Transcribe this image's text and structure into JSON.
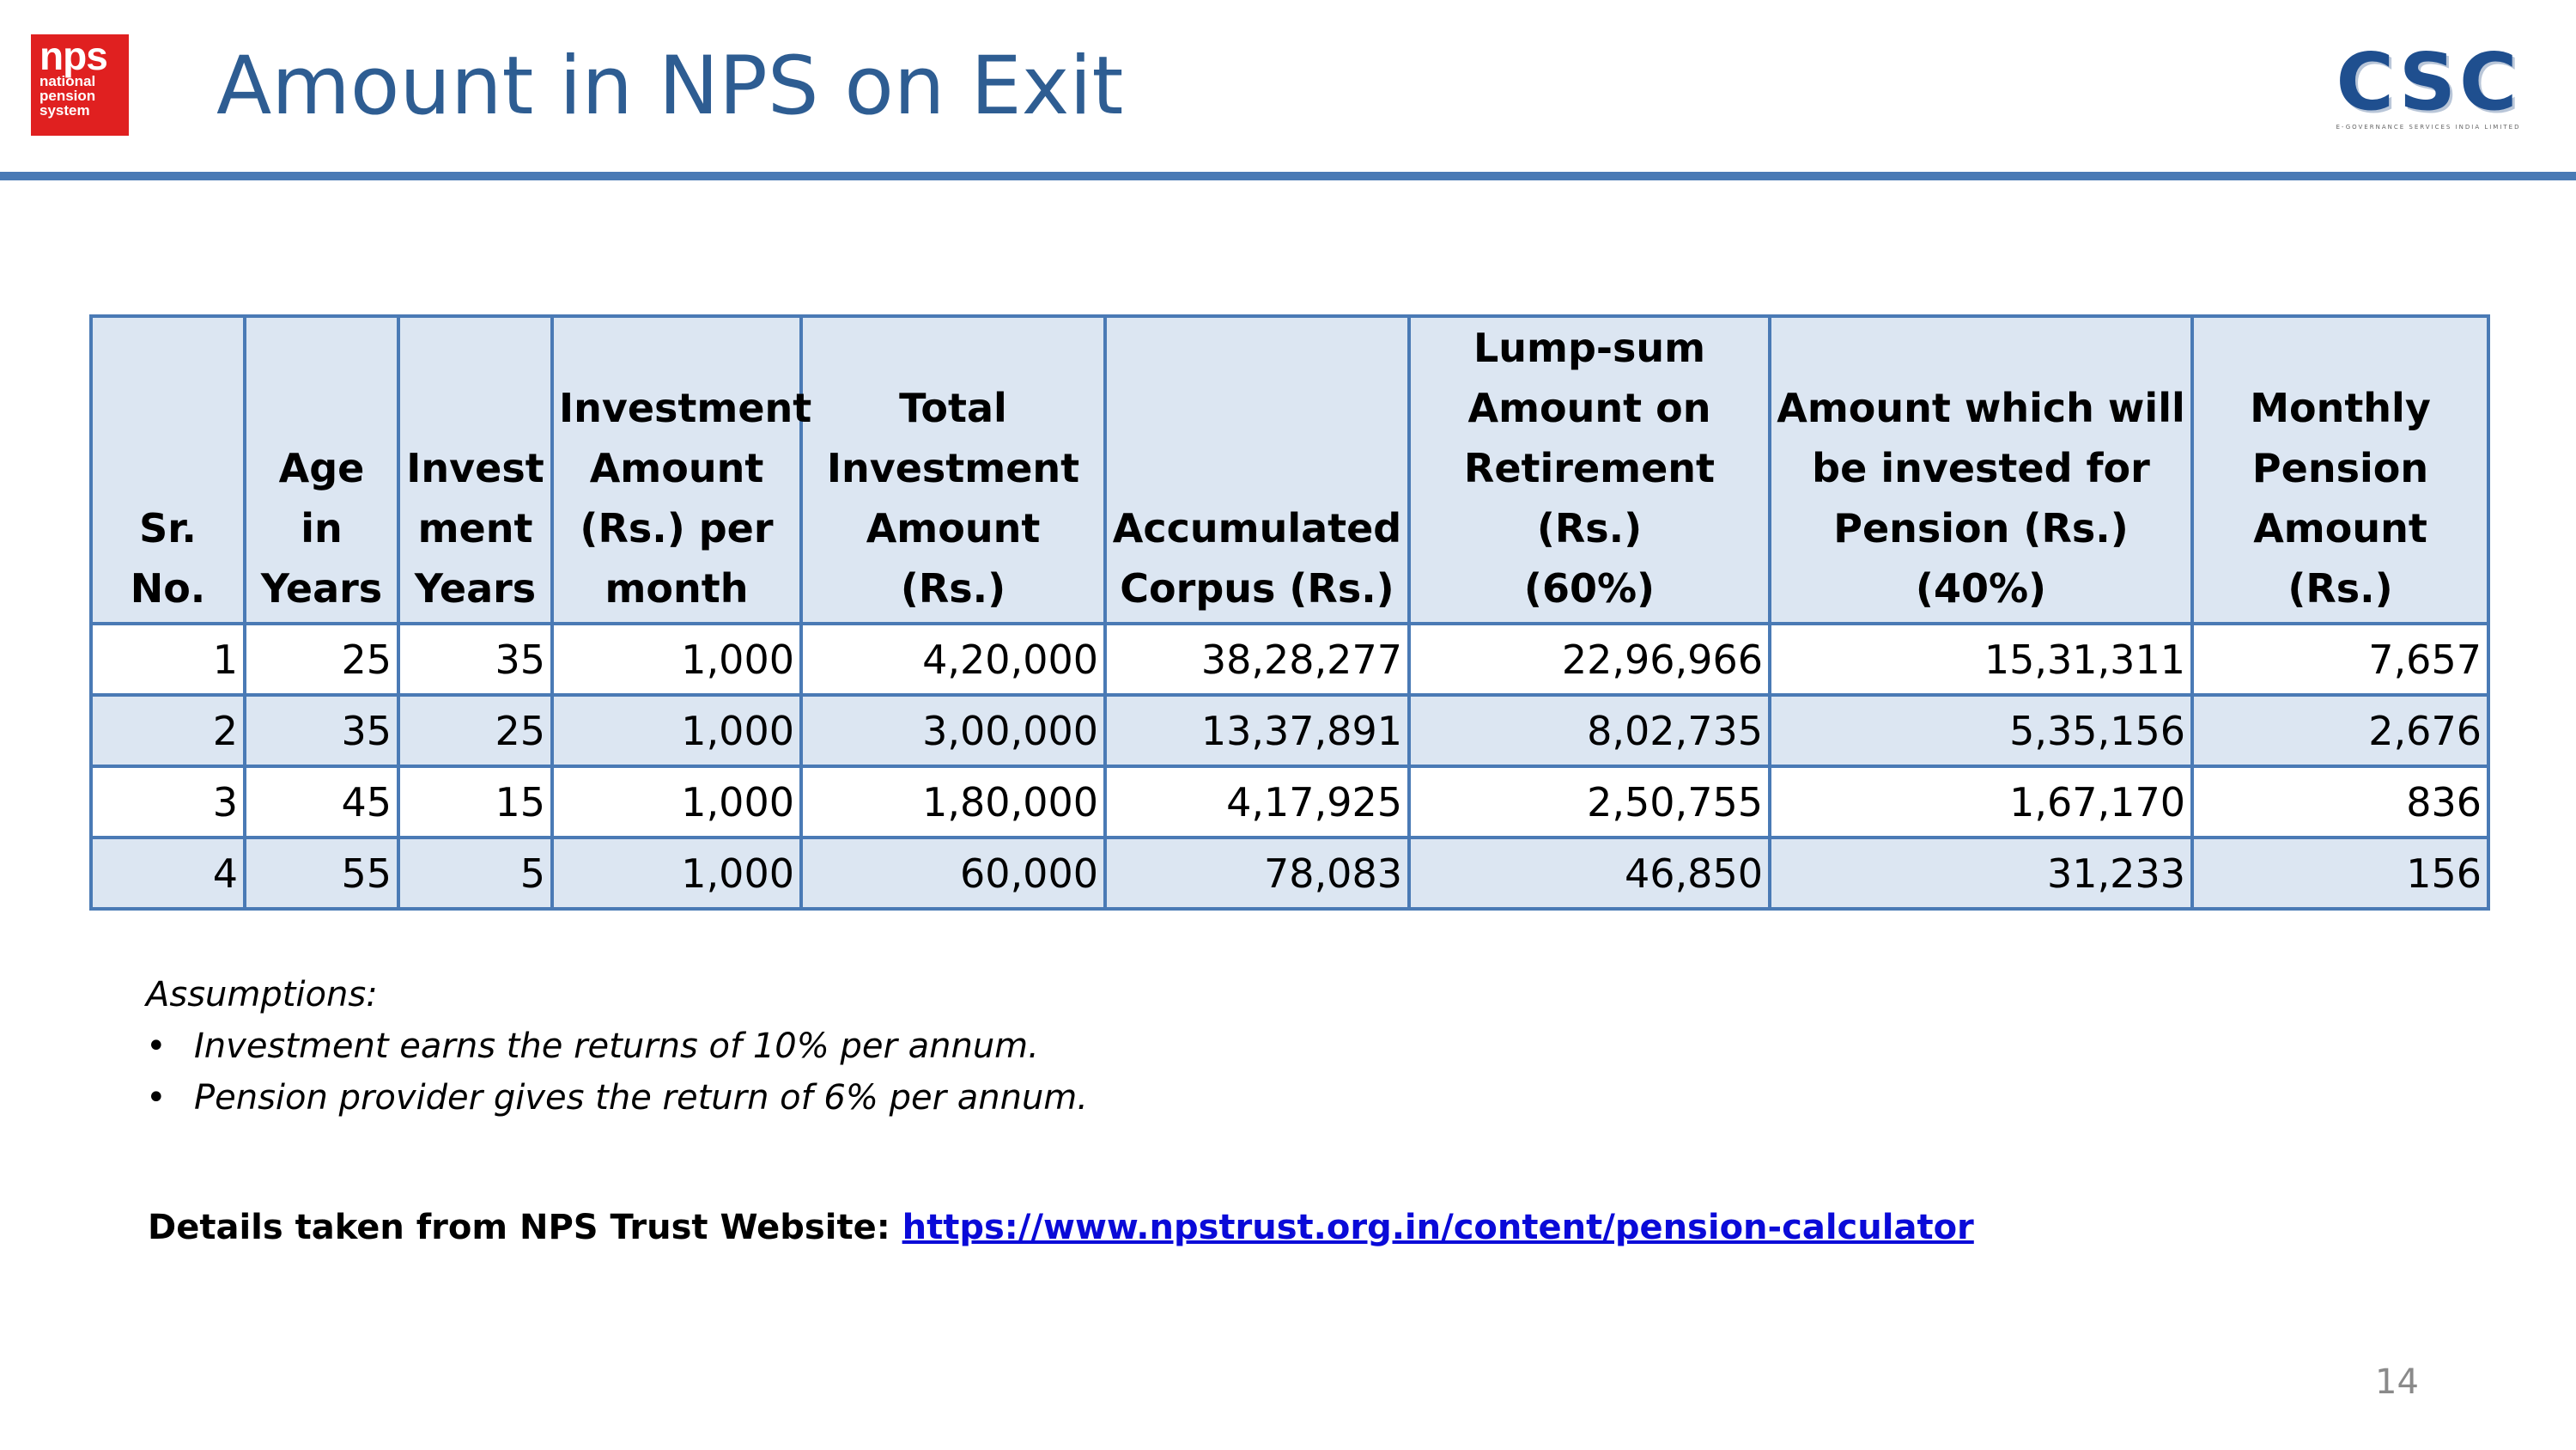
{
  "header": {
    "title": "Amount in NPS on Exit",
    "nps_logo": {
      "big": "nps",
      "small": "national\npension\nsystem"
    },
    "csc_logo": {
      "letters": "CSC",
      "tagline": "E-GOVERNANCE SERVICES INDIA LIMITED"
    }
  },
  "table": {
    "headers": [
      "Sr. No.",
      "Age in\nYears",
      "Invest\nment\nYears",
      "Investment\nAmount\n(Rs.) per\nmonth",
      "Total\nInvestment\nAmount (Rs.)",
      "Accumulated\nCorpus (Rs.)",
      "Lump-sum\nAmount on\nRetirement (Rs.)\n(60%)",
      "Amount which will\nbe invested for\nPension (Rs.) (40%)",
      "Monthly\nPension\nAmount (Rs.)"
    ],
    "rows": [
      [
        "1",
        "25",
        "35",
        "1,000",
        "4,20,000",
        "38,28,277",
        "22,96,966",
        "15,31,311",
        "7,657"
      ],
      [
        "2",
        "35",
        "25",
        "1,000",
        "3,00,000",
        "13,37,891",
        "8,02,735",
        "5,35,156",
        "2,676"
      ],
      [
        "3",
        "45",
        "15",
        "1,000",
        "1,80,000",
        "4,17,925",
        "2,50,755",
        "1,67,170",
        "836"
      ],
      [
        "4",
        "55",
        "5",
        "1,000",
        "60,000",
        "78,083",
        "46,850",
        "31,233",
        "156"
      ]
    ]
  },
  "assumptions": {
    "heading": "Assumptions:",
    "bullet": "•",
    "items": [
      "Investment earns the returns of 10% per annum.",
      "Pension provider gives the return of 6% per annum."
    ]
  },
  "source": {
    "label": "Details taken from NPS Trust Website: ",
    "link_text": "https://www.npstrust.org.in/content/pension-calculator"
  },
  "page_number": "14",
  "colors": {
    "title": "#2e5d92",
    "rule": "#4a7ab5",
    "table_border": "#4a7ab5",
    "table_fill": "#dce6f2",
    "nps_red": "#e02020",
    "link": "#0a0ad8"
  }
}
